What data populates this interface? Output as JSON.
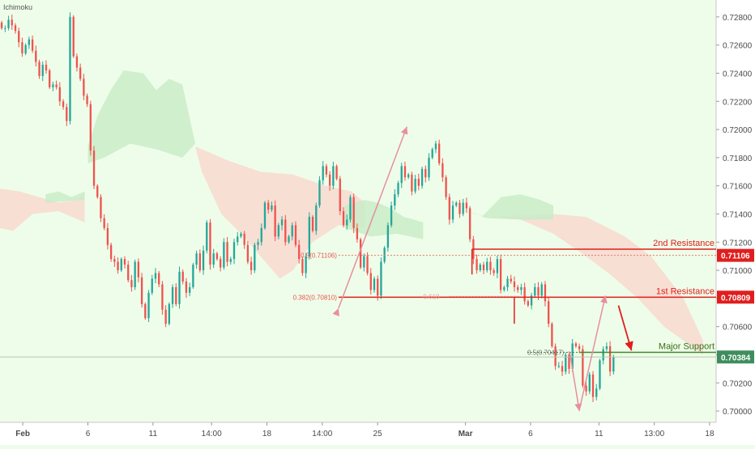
{
  "indicator_label": "Ichimoku",
  "colors": {
    "background": "#eefde9",
    "bull_candle": "#26a69a",
    "bear_candle": "#ef5350",
    "cloud_bull": "#c9ecc8",
    "cloud_bear": "#f8d9cf",
    "resistance_line": "#e01e1e",
    "fib_dotted": "#e8746c",
    "support_line": "#3f8a2a",
    "current_price_line": "#b9c7b3",
    "arrow_pink": "#e88ea0",
    "axis_text": "#4a4a4a"
  },
  "annotations": {
    "second_resistance": "2nd Resistance",
    "first_resistance": "1st Resistance",
    "major_support": "Major Support",
    "fib_05_left": "0.5(0.71106)",
    "fib_0382": "0.382(0.70810)",
    "fib_0618": "0.618",
    "fib_05_right": "0.5(0.70417)"
  },
  "price_badges": {
    "second_resistance": "0.71106",
    "first_resistance": "0.70809",
    "current": "0.70384"
  },
  "chart_data": {
    "type": "candlestick",
    "instrument_note": "price chart with Ichimoku cloud",
    "y_axis": {
      "range": [
        0.6992,
        0.7292
      ],
      "ticks": [
        "0.72800",
        "0.72600",
        "0.72400",
        "0.72200",
        "0.72000",
        "0.71800",
        "0.71600",
        "0.71400",
        "0.71200",
        "0.71000",
        "0.70800",
        "0.70600",
        "0.70400",
        "0.70200",
        "0.70000"
      ]
    },
    "x_axis": {
      "range": [
        0,
        220
      ],
      "ticks": [
        {
          "label": "Feb",
          "x": 7
        },
        {
          "label": "6",
          "x": 27
        },
        {
          "label": "11",
          "x": 47
        },
        {
          "label": "14:00",
          "x": 65
        },
        {
          "label": "18",
          "x": 82
        },
        {
          "label": "14:00",
          "x": 99
        },
        {
          "label": "25",
          "x": 116
        },
        {
          "label": "Mar",
          "x": 143
        },
        {
          "label": "6",
          "x": 163
        },
        {
          "label": "11",
          "x": 184
        },
        {
          "label": "13:00",
          "x": 201
        },
        {
          "label": "18",
          "x": 218
        }
      ]
    },
    "levels": {
      "second_resistance": 0.71106,
      "first_resistance": 0.70809,
      "major_support": 0.70417,
      "current_price": 0.70384
    },
    "candles_close": [
      0.7272,
      0.7272,
      0.7278,
      0.7274,
      0.727,
      0.7262,
      0.7254,
      0.726,
      0.7264,
      0.7256,
      0.7248,
      0.7238,
      0.7246,
      0.7242,
      0.723,
      0.7232,
      0.723,
      0.722,
      0.7216,
      0.7206,
      0.728,
      0.7252,
      0.7244,
      0.7236,
      0.7224,
      0.7218,
      0.7185,
      0.716,
      0.7152,
      0.7137,
      0.713,
      0.7118,
      0.7108,
      0.7106,
      0.71,
      0.7108,
      0.7104,
      0.7093,
      0.7088,
      0.7106,
      0.7095,
      0.7076,
      0.7066,
      0.7084,
      0.7094,
      0.7098,
      0.709,
      0.7072,
      0.7062,
      0.7076,
      0.7088,
      0.7076,
      0.7099,
      0.7092,
      0.7084,
      0.7088,
      0.7104,
      0.7112,
      0.71,
      0.7114,
      0.7134,
      0.7104,
      0.7112,
      0.7108,
      0.7102,
      0.712,
      0.7106,
      0.7108,
      0.712,
      0.7124,
      0.7126,
      0.7118,
      0.7106,
      0.71,
      0.7118,
      0.712,
      0.713,
      0.7148,
      0.7143,
      0.7146,
      0.7124,
      0.7132,
      0.7136,
      0.712,
      0.7124,
      0.7132,
      0.7118,
      0.7108,
      0.7098,
      0.711,
      0.7138,
      0.7128,
      0.7146,
      0.7164,
      0.7174,
      0.7168,
      0.716,
      0.7174,
      0.7165,
      0.7142,
      0.7132,
      0.7136,
      0.7152,
      0.713,
      0.7122,
      0.7102,
      0.711,
      0.7098,
      0.7086,
      0.7094,
      0.7082,
      0.7106,
      0.7116,
      0.7132,
      0.7146,
      0.7154,
      0.7162,
      0.7174,
      0.7166,
      0.7168,
      0.7156,
      0.7165,
      0.716,
      0.7172,
      0.7166,
      0.718,
      0.7186,
      0.719,
      0.7176,
      0.7166,
      0.7152,
      0.7136,
      0.7146,
      0.7148,
      0.714,
      0.7148,
      0.7144,
      0.7122,
      0.7108,
      0.71,
      0.7104,
      0.71,
      0.7106,
      0.71,
      0.7098,
      0.7108,
      0.7086,
      0.7088,
      0.7094,
      0.7092,
      0.7088,
      0.7086,
      0.7088,
      0.7078,
      0.7075,
      0.7082,
      0.7088,
      0.7082,
      0.709,
      0.7078,
      0.7062,
      0.7046,
      0.7032,
      0.7032,
      0.7028,
      0.704,
      0.703,
      0.7048,
      0.7046,
      0.7044,
      0.7018,
      0.7014,
      0.7026,
      0.701,
      0.7016,
      0.7036,
      0.7044,
      0.7046,
      0.7028,
      0.70384
    ]
  }
}
